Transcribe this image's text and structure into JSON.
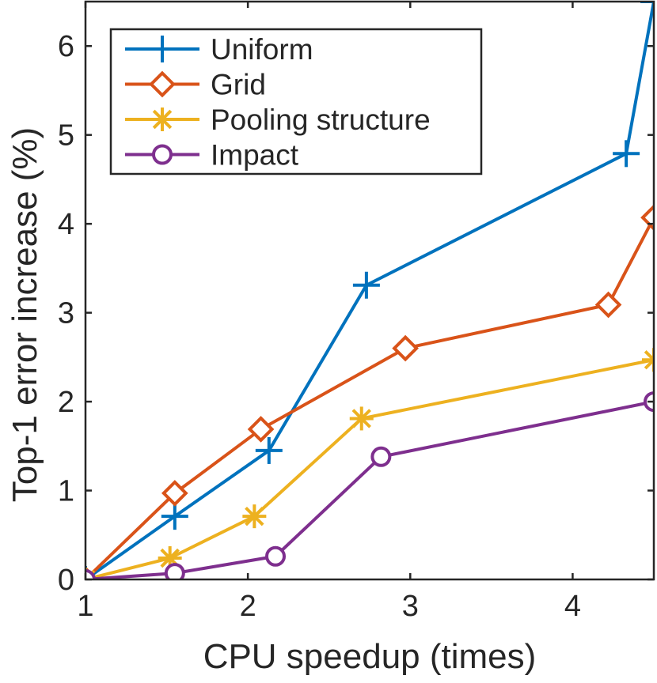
{
  "chart_data": {
    "type": "line",
    "title": "",
    "xlabel": "CPU speedup (times)",
    "ylabel": "Top-1 error increase (%)",
    "xlim": [
      1,
      4.5
    ],
    "ylim": [
      0,
      6.5
    ],
    "xticks": [
      1,
      2,
      3,
      4
    ],
    "yticks": [
      0,
      1,
      2,
      3,
      4,
      5,
      6
    ],
    "grid": false,
    "legend_position": "top-left",
    "series": [
      {
        "name": "Uniform",
        "color": "#0072BD",
        "marker": "plus",
        "x": [
          1.0,
          1.55,
          2.13,
          2.73,
          4.33,
          4.5
        ],
        "y": [
          0.0,
          0.71,
          1.45,
          3.31,
          4.79,
          6.5
        ]
      },
      {
        "name": "Grid",
        "color": "#D95319",
        "marker": "diamond",
        "x": [
          1.0,
          1.55,
          2.08,
          2.97,
          4.22,
          4.5
        ],
        "y": [
          0.0,
          0.97,
          1.69,
          2.6,
          3.09,
          4.07
        ]
      },
      {
        "name": "Pooling structure",
        "color": "#EDB120",
        "marker": "asterisk",
        "x": [
          1.0,
          1.52,
          2.04,
          2.7,
          4.5
        ],
        "y": [
          0.0,
          0.24,
          0.71,
          1.81,
          2.47
        ]
      },
      {
        "name": "Impact",
        "color": "#7E2F8E",
        "marker": "circle",
        "x": [
          1.0,
          1.55,
          2.17,
          2.82,
          4.5
        ],
        "y": [
          0.0,
          0.07,
          0.26,
          1.38,
          2.0
        ]
      }
    ]
  }
}
